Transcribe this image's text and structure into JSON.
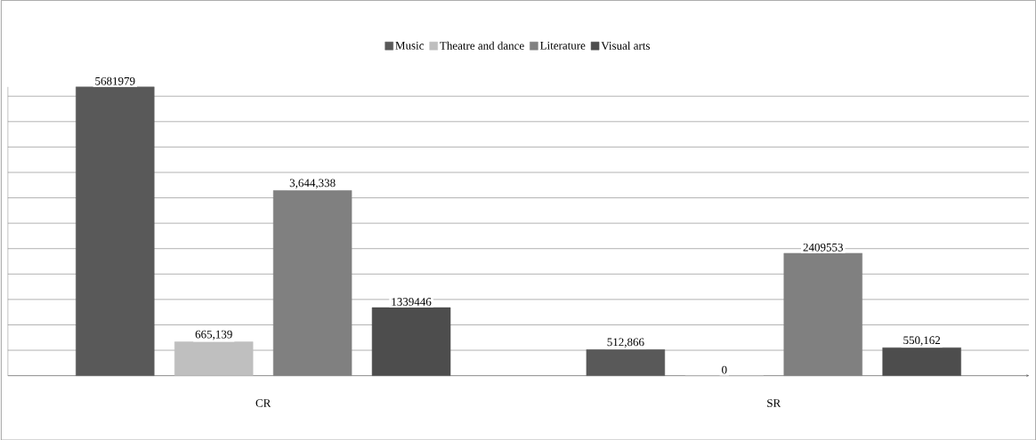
{
  "chart_data": {
    "type": "bar",
    "categories": [
      "CR",
      "SR"
    ],
    "series": [
      {
        "name": "Music",
        "color": "#595959",
        "values": [
          5681979,
          512866
        ],
        "value_labels": [
          "5681979",
          "512,866"
        ]
      },
      {
        "name": "Theatre and dance",
        "color": "#bfbfbf",
        "values": [
          665139,
          0
        ],
        "value_labels": [
          "665,139",
          "0"
        ]
      },
      {
        "name": "Literature",
        "color": "#808080",
        "values": [
          3644338,
          2409553
        ],
        "value_labels": [
          "3,644,338",
          "2409553"
        ]
      },
      {
        "name": "Visual arts",
        "color": "#4d4d4d",
        "values": [
          1339446,
          550162
        ],
        "value_labels": [
          "1339446",
          "550,162"
        ]
      }
    ],
    "grid": "y",
    "legend": "top",
    "tick_labels": "x"
  }
}
